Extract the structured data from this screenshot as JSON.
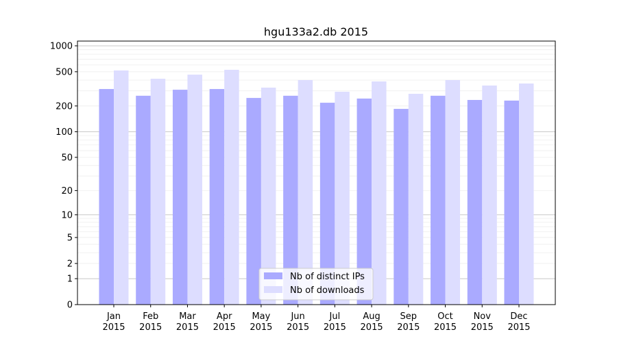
{
  "chart_data": {
    "type": "bar",
    "title": "hgu133a2.db 2015",
    "xlabel": "",
    "ylabel": "",
    "yscale": "symlog",
    "ylim": [
      0,
      1000
    ],
    "yticks": [
      0,
      1,
      2,
      5,
      10,
      20,
      50,
      100,
      200,
      500,
      1000
    ],
    "grid": true,
    "legend_position": "bottom-center",
    "categories": [
      "Jan\n2015",
      "Feb\n2015",
      "Mar\n2015",
      "Apr\n2015",
      "May\n2015",
      "Jun\n2015",
      "Jul\n2015",
      "Aug\n2015",
      "Sep\n2015",
      "Oct\n2015",
      "Nov\n2015",
      "Dec\n2015"
    ],
    "series": [
      {
        "name": "Nb of distinct IPs",
        "color": "#aaaaff",
        "values": [
          315,
          263,
          309,
          315,
          248,
          263,
          218,
          244,
          185,
          263,
          235,
          231
        ]
      },
      {
        "name": "Nb of downloads",
        "color": "#ddddff",
        "values": [
          518,
          415,
          463,
          527,
          327,
          400,
          293,
          386,
          277,
          400,
          346,
          365
        ]
      }
    ]
  }
}
